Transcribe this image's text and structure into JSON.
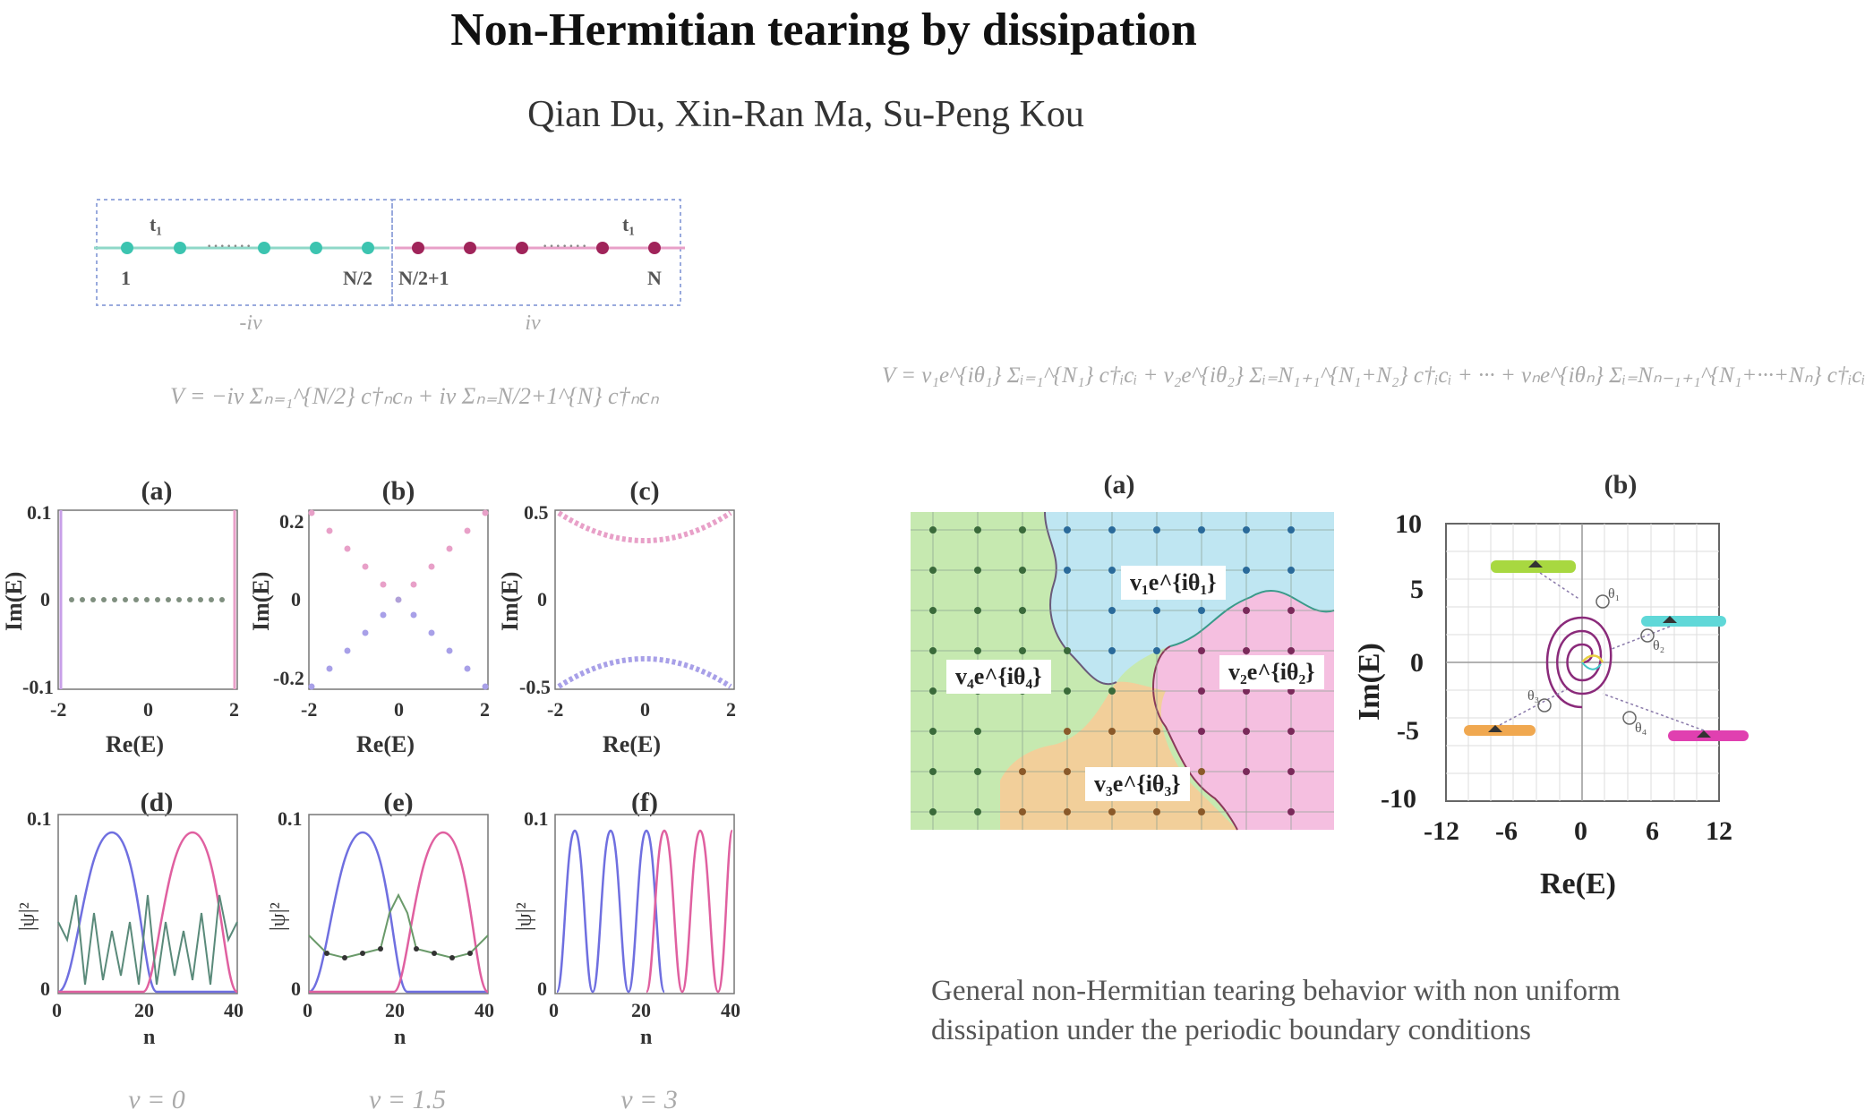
{
  "header": {
    "title": "Non-Hermitian tearing by dissipation",
    "authors": "Qian Du, Xin-Ran Ma, Su-Peng Kou"
  },
  "lattice": {
    "hop_left": "t₁",
    "hop_right": "t₁",
    "site_1": "1",
    "site_n2": "N/2",
    "site_n2p1": "N/2+1",
    "site_n": "N",
    "diss_left": "-iv",
    "diss_right": "iv",
    "colors": {
      "left": "#3cc4b0",
      "right": "#a0245a"
    }
  },
  "formulas": {
    "left": "V = −iv Σₙ₌₁^{N/2} c†ₙcₙ + iv Σₙ₌N/2+1^{N} c†ₙcₙ",
    "right": "V = v₁e^{iθ₁} Σᵢ₌₁^{N₁} c†ᵢcᵢ + v₂e^{iθ₂} Σᵢ₌N₁₊₁^{N₁+N₂} c†ᵢcᵢ + ··· + vₙe^{iθₙ} Σᵢ₌Nₙ₋₁₊₁^{N₁+···+Nₙ} c†ᵢcᵢ"
  },
  "left_panels": {
    "spectra": [
      {
        "label": "(a)",
        "xlabel": "Re(E)",
        "ylabel": "Im(E)",
        "xticks": [
          "-2",
          "0",
          "2"
        ],
        "yticks": [
          "0.1",
          "0",
          "-0.1"
        ]
      },
      {
        "label": "(b)",
        "xlabel": "Re(E)",
        "ylabel": "Im(E)",
        "xticks": [
          "-2",
          "0",
          "2"
        ],
        "yticks": [
          "0.2",
          "0",
          "-0.2"
        ]
      },
      {
        "label": "(c)",
        "xlabel": "Re(E)",
        "ylabel": "Im(E)",
        "xticks": [
          "-2",
          "0",
          "2"
        ],
        "yticks": [
          "0.5",
          "0",
          "-0.5"
        ]
      }
    ],
    "wavefunctions": [
      {
        "label": "(d)",
        "xlabel": "n",
        "ylabel": "|ψ|²",
        "xticks": [
          "0",
          "20",
          "40"
        ],
        "yticks": [
          "0.1",
          "0"
        ],
        "v": "v = 0"
      },
      {
        "label": "(e)",
        "xlabel": "n",
        "ylabel": "|ψ|²",
        "xticks": [
          "0",
          "20",
          "40"
        ],
        "yticks": [
          "0.1",
          "0"
        ],
        "v": "v = 1.5"
      },
      {
        "label": "(f)",
        "xlabel": "n",
        "ylabel": "|ψ|²",
        "xticks": [
          "0",
          "20",
          "40"
        ],
        "yticks": [
          "0.1",
          "0"
        ],
        "v": "v = 3"
      }
    ]
  },
  "right_panels": {
    "a": {
      "label": "(a)",
      "regions": [
        "v₁e^{iθ₁}",
        "v₂e^{iθ₂}",
        "v₃e^{iθ₃}",
        "v₄e^{iθ₄}"
      ],
      "colors": {
        "r1": "#bfe6f2",
        "r2": "#f5bfe0",
        "r3": "#f2cf9a",
        "r4": "#c6e9b0"
      }
    },
    "b": {
      "label": "(b)",
      "xlabel": "Re(E)",
      "ylabel": "Im(E)",
      "xticks": [
        "-12",
        "-6",
        "0",
        "6",
        "12"
      ],
      "yticks": [
        "10",
        "5",
        "0",
        "-5",
        "-10"
      ],
      "markers": [
        "θ₁",
        "θ₂",
        "θ₃",
        "θ₄"
      ]
    }
  },
  "caption": "General non-Hermitian tearing behavior with non uniform dissipation under the periodic boundary conditions"
}
